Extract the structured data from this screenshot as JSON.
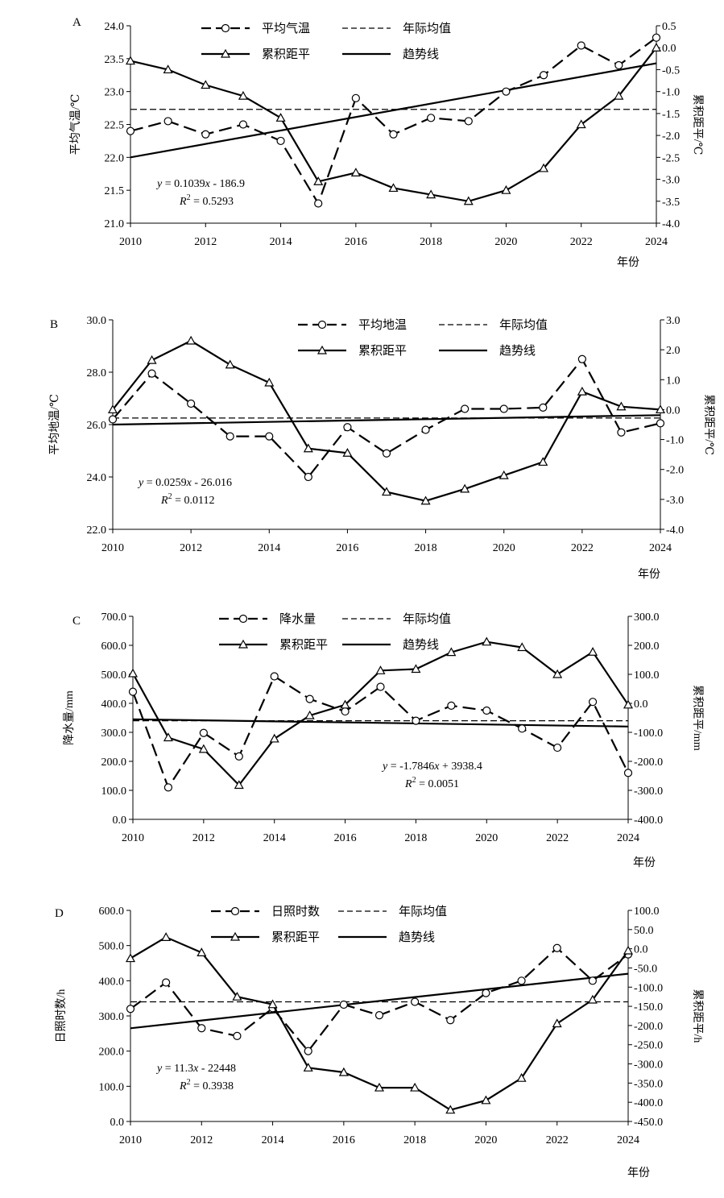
{
  "chart_data": [
    {
      "panel": "A",
      "type": "line",
      "x": [
        2010,
        2011,
        2012,
        2013,
        2014,
        2015,
        2016,
        2017,
        2018,
        2019,
        2020,
        2021,
        2022,
        2023,
        2024
      ],
      "xticks": [
        "2010",
        "2012",
        "2014",
        "2016",
        "2018",
        "2020",
        "2022",
        "2024"
      ],
      "xlabel": "年份",
      "ylabel": "平均气温/℃",
      "y2label": "累积距平/℃",
      "ylim": [
        21.0,
        24.0
      ],
      "y2lim": [
        -4.0,
        0.5
      ],
      "yticks": [
        "21.0",
        "21.5",
        "22.0",
        "22.5",
        "23.0",
        "23.5",
        "24.0"
      ],
      "y2ticks": [
        "-4.0",
        "-3.5",
        "-3.0",
        "-2.5",
        "-2.0",
        "-1.5",
        "-1.0",
        "-0.5",
        "0.0",
        "0.5"
      ],
      "series": [
        {
          "name": "平均气温",
          "axis": "left",
          "values": [
            22.4,
            22.55,
            22.35,
            22.5,
            22.25,
            21.3,
            22.9,
            22.35,
            22.6,
            22.55,
            23.0,
            23.25,
            23.7,
            23.4,
            23.82
          ]
        },
        {
          "name": "累积距平",
          "axis": "right",
          "values": [
            -0.3,
            -0.5,
            -0.85,
            -1.1,
            -1.6,
            -3.05,
            -2.85,
            -3.2,
            -3.35,
            -3.5,
            -3.25,
            -2.75,
            -1.75,
            -1.1,
            0.0
          ]
        }
      ],
      "mean": {
        "name": "年际均值",
        "value": 22.73
      },
      "trend": {
        "name": "趋势线",
        "start": 22.0,
        "end": 23.43
      },
      "equation": {
        "y_label": "y",
        "rhs": " = 0.1039",
        "x_label": "x",
        "tail": " - 186.9",
        "r_label": "R",
        "sup": "2",
        "r_value": " = 0.5293"
      }
    },
    {
      "panel": "B",
      "type": "line",
      "x": [
        2010,
        2011,
        2012,
        2013,
        2014,
        2015,
        2016,
        2017,
        2018,
        2019,
        2020,
        2021,
        2022,
        2023,
        2024
      ],
      "xticks": [
        "2010",
        "2012",
        "2014",
        "2016",
        "2018",
        "2020",
        "2022",
        "2024"
      ],
      "xlabel": "年份",
      "ylabel": "平均地温/℃",
      "y2label": "累积距平/℃",
      "ylim": [
        22.0,
        30.0
      ],
      "y2lim": [
        -4.0,
        3.0
      ],
      "yticks": [
        "22.0",
        "24.0",
        "26.0",
        "28.0",
        "30.0"
      ],
      "y2ticks": [
        "-4.0",
        "-3.0",
        "-2.0",
        "-1.0",
        "0.0",
        "1.0",
        "2.0",
        "3.0"
      ],
      "series": [
        {
          "name": "平均地温",
          "axis": "left",
          "values": [
            26.2,
            27.95,
            26.8,
            25.55,
            25.55,
            24.0,
            25.9,
            24.9,
            25.8,
            26.6,
            26.6,
            26.65,
            28.5,
            25.7,
            26.05
          ]
        },
        {
          "name": "累积距平",
          "axis": "right",
          "values": [
            0.0,
            1.65,
            2.3,
            1.5,
            0.9,
            -1.3,
            -1.45,
            -2.75,
            -3.05,
            -2.65,
            -2.2,
            -1.75,
            0.6,
            0.1,
            0.0
          ]
        }
      ],
      "mean": {
        "name": "年际均值",
        "value": 26.25
      },
      "trend": {
        "name": "趋势线",
        "start": 26.0,
        "end": 26.36
      },
      "equation": {
        "y_label": "y",
        "rhs": " = 0.0259",
        "x_label": "x",
        "tail": " - 26.016",
        "r_label": "R",
        "sup": "2",
        "r_value": " = 0.0112"
      }
    },
    {
      "panel": "C",
      "type": "line",
      "x": [
        2010,
        2011,
        2012,
        2013,
        2014,
        2015,
        2016,
        2017,
        2018,
        2019,
        2020,
        2021,
        2022,
        2023,
        2024
      ],
      "xticks": [
        "2010",
        "2012",
        "2014",
        "2016",
        "2018",
        "2020",
        "2022",
        "2024"
      ],
      "xlabel": "年份",
      "ylabel": "降水量/mm",
      "y2label": "累积距平/mm",
      "ylim": [
        0.0,
        700.0
      ],
      "y2lim": [
        -400.0,
        300.0
      ],
      "yticks": [
        "0.0",
        "100.0",
        "200.0",
        "300.0",
        "400.0",
        "500.0",
        "600.0",
        "700.0"
      ],
      "y2ticks": [
        "-400.0",
        "-300.0",
        "-200.0",
        "-100.0",
        "0.0",
        "100.0",
        "200.0",
        "300.0"
      ],
      "series": [
        {
          "name": "降水量",
          "axis": "left",
          "values": [
            440,
            110,
            298,
            217,
            493,
            415,
            372,
            457,
            340,
            392,
            375,
            313,
            247,
            405,
            160
          ]
        },
        {
          "name": "累积距平",
          "axis": "right",
          "values": [
            103,
            -118,
            -158,
            -282,
            -122,
            -42,
            -5,
            113,
            118,
            176,
            212,
            193,
            100,
            177,
            -5
          ]
        }
      ],
      "mean": {
        "name": "年际均值",
        "value": 340
      },
      "trend": {
        "name": "趋势线",
        "start": 345,
        "end": 320
      },
      "equation": {
        "y_label": "y",
        "rhs": " = -1.7846",
        "x_label": "x",
        "tail": " + 3938.4",
        "r_label": "R",
        "sup": "2",
        "r_value": " = 0.0051"
      }
    },
    {
      "panel": "D",
      "type": "line",
      "x": [
        2010,
        2011,
        2012,
        2013,
        2014,
        2015,
        2016,
        2017,
        2018,
        2019,
        2020,
        2021,
        2022,
        2023,
        2024
      ],
      "xticks": [
        "2010",
        "2012",
        "2014",
        "2016",
        "2018",
        "2020",
        "2022",
        "2024"
      ],
      "xlabel": "年份",
      "ylabel": "日照时数/h",
      "y2label": "累积距平/h",
      "ylim": [
        0.0,
        600.0
      ],
      "y2lim": [
        -450.0,
        100.0
      ],
      "yticks": [
        "0.0",
        "100.0",
        "200.0",
        "300.0",
        "400.0",
        "500.0",
        "600.0"
      ],
      "y2ticks": [
        "-450.0",
        "-400.0",
        "-350.0",
        "-300.0",
        "-250.0",
        "-200.0",
        "-150.0",
        "-100.0",
        "-50.0",
        "0.0",
        "50.0",
        "100.0"
      ],
      "series": [
        {
          "name": "日照时数",
          "axis": "left",
          "values": [
            320,
            395,
            265,
            243,
            322,
            200,
            332,
            302,
            340,
            288,
            365,
            400,
            493,
            400,
            475
          ]
        },
        {
          "name": "累积距平",
          "axis": "right",
          "values": [
            -25,
            30,
            -10,
            -125,
            -145,
            -310,
            -322,
            -362,
            -362,
            -420,
            -395,
            -337,
            -195,
            -133,
            -5
          ]
        }
      ],
      "mean": {
        "name": "年际均值",
        "value": 340
      },
      "trend": {
        "name": "趋势线",
        "start": 265,
        "end": 420
      },
      "equation": {
        "y_label": "y",
        "rhs": " = 11.3",
        "x_label": "x",
        "tail": " - 22448",
        "r_label": "R",
        "sup": "2",
        "r_value": " = 0.3938"
      }
    }
  ]
}
